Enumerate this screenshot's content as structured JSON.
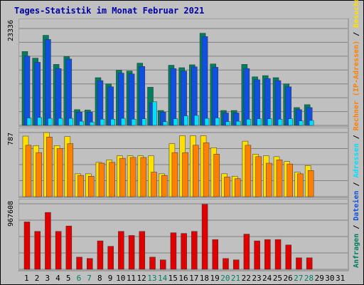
{
  "chart_data": {
    "type": "bar",
    "title": "Tages-Statistik im Monat Februar 2021",
    "categories": [
      "1",
      "2",
      "3",
      "4",
      "5",
      "6",
      "7",
      "8",
      "9",
      "10",
      "11",
      "12",
      "13",
      "14",
      "15",
      "16",
      "17",
      "18",
      "19",
      "20",
      "21",
      "22",
      "23",
      "24",
      "25",
      "26",
      "27",
      "28",
      "29",
      "30",
      "31"
    ],
    "weekend_days": [
      "6",
      "7",
      "13",
      "14",
      "20",
      "21",
      "27",
      "28"
    ],
    "grid": true,
    "legend_placement": "right-vertical",
    "legend": [
      {
        "label": "Anfragen",
        "color": "#007f5f"
      },
      {
        "label": " / ",
        "color": "#000000"
      },
      {
        "label": "Dateien",
        "color": "#1050e0"
      },
      {
        "label": " / ",
        "color": "#000000"
      },
      {
        "label": "Adressen",
        "color": "#00e0ff"
      },
      {
        "label": " / ",
        "color": "#000000"
      },
      {
        "label": "Rechner (IP-Adressen)",
        "color": "#ff8000"
      },
      {
        "label": " / ",
        "color": "#000000"
      },
      {
        "label": "Besuche",
        "color": "#ffe000"
      },
      {
        "label": " / ",
        "color": "#000000"
      },
      {
        "label": "KB In",
        "color": "#1050e0"
      },
      {
        "label": " / ",
        "color": "#000000"
      },
      {
        "label": "KB Out",
        "color": "#007f5f"
      },
      {
        "label": " / ",
        "color": "#000000"
      },
      {
        "label": "KB F",
        "color": "#e00000"
      }
    ],
    "panels": [
      {
        "name": "requests",
        "ymax_label": "23336",
        "ymax": 23336,
        "series": [
          {
            "name": "Anfragen",
            "color": "#007f5f",
            "values": [
              17800,
              16200,
              21700,
              14700,
              16600,
              3800,
              3700,
              11500,
              10000,
              13300,
              13100,
              15000,
              9200,
              3600,
              14500,
              13900,
              14600,
              22200,
              14800,
              3600,
              3600,
              14700,
              11700,
              12000,
              11500,
              10000,
              4300,
              5000,
              null,
              null,
              null
            ]
          },
          {
            "name": "Dateien",
            "color": "#1050e0",
            "values": [
              16700,
              15200,
              20700,
              13700,
              16000,
              3200,
              3200,
              10800,
              9300,
              12600,
              12400,
              14200,
              5400,
              3200,
              13700,
              13100,
              14100,
              21400,
              14000,
              3000,
              3000,
              13700,
              11000,
              11300,
              10800,
              9300,
              3800,
              4300,
              null,
              null,
              null
            ]
          },
          {
            "name": "Adressen",
            "color": "#00e0ff",
            "values": [
              1800,
              1900,
              1700,
              1700,
              1700,
              1000,
              800,
              1500,
              1500,
              1700,
              1500,
              1600,
              5700,
              900,
              1600,
              2300,
              2400,
              1700,
              1800,
              900,
              1000,
              1500,
              1600,
              1600,
              1500,
              1600,
              1100,
              1200,
              null,
              null,
              null
            ]
          }
        ]
      },
      {
        "name": "visits",
        "ymax_label": "787",
        "ymax": 787,
        "series": [
          {
            "name": "Besuche",
            "color": "#ffe000",
            "values": [
              743,
              627,
              787,
              627,
              737,
              281,
              281,
              421,
              451,
              501,
              501,
              501,
              501,
              281,
              651,
              748,
              748,
              748,
              601,
              281,
              251,
              681,
              521,
              501,
              491,
              431,
              301,
              381,
              null,
              null,
              null
            ]
          },
          {
            "name": "Rechner (IP-Adressen)",
            "color": "#ff8000",
            "values": [
              631,
              541,
              731,
              591,
              651,
              261,
              251,
              411,
              421,
              471,
              481,
              481,
              301,
              261,
              541,
              541,
              631,
              661,
              521,
              241,
              221,
              631,
              491,
              411,
              451,
              401,
              281,
              321,
              null,
              null,
              null
            ]
          }
        ]
      },
      {
        "name": "kbytes",
        "ymax_label": "967608",
        "ymax": 967608,
        "series": [
          {
            "name": "KB F",
            "color": "#e00000",
            "values": [
              700000,
              560000,
              840000,
              560000,
              640000,
              180000,
              160000,
              420000,
              340000,
              560000,
              500000,
              560000,
              180000,
              140000,
              540000,
              530000,
              560000,
              960000,
              440000,
              160000,
              140000,
              520000,
              420000,
              440000,
              440000,
              360000,
              170000,
              170000,
              null,
              null,
              null
            ]
          }
        ]
      }
    ]
  }
}
